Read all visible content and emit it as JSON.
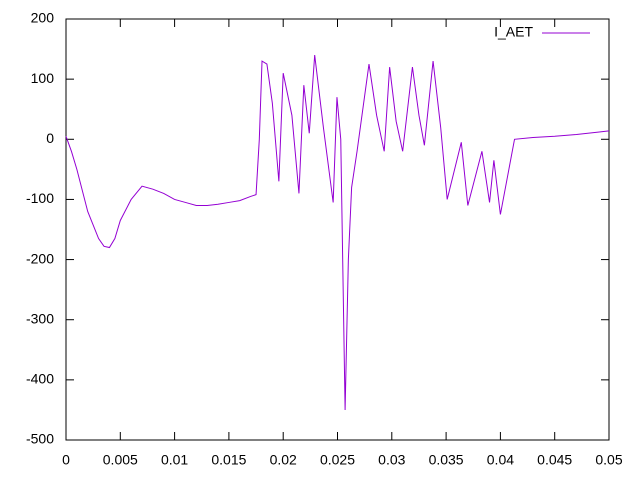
{
  "chart_data": {
    "type": "line",
    "x": [
      0,
      0.0005,
      0.001,
      0.002,
      0.003,
      0.0035,
      0.004,
      0.0045,
      0.005,
      0.006,
      0.007,
      0.008,
      0.009,
      0.01,
      0.011,
      0.012,
      0.013,
      0.014,
      0.015,
      0.016,
      0.017,
      0.0175,
      0.0178,
      0.01805,
      0.0185,
      0.019,
      0.0196,
      0.02,
      0.0208,
      0.02145,
      0.0219,
      0.0224,
      0.0229,
      0.0237,
      0.0246,
      0.02495,
      0.0253,
      0.0257,
      0.026,
      0.0263,
      0.0268,
      0.0279,
      0.0286,
      0.0293,
      0.0298,
      0.0304,
      0.031,
      0.0319,
      0.0325,
      0.033,
      0.0338,
      0.0345,
      0.0351,
      0.0364,
      0.037,
      0.0383,
      0.039,
      0.0394,
      0.04,
      0.0413,
      0.043,
      0.045,
      0.047,
      0.049,
      0.05
    ],
    "series": [
      {
        "name": "I_AET",
        "color": "#9400d3",
        "values": [
          5,
          -20,
          -50,
          -120,
          -165,
          -178,
          -180,
          -165,
          -135,
          -100,
          -78,
          -83,
          -90,
          -100,
          -105,
          -110,
          -110,
          -108,
          -105,
          -102,
          -95,
          -92,
          0,
          130,
          125,
          60,
          -70,
          110,
          40,
          -90,
          90,
          10,
          140,
          20,
          -105,
          70,
          0,
          -450,
          -200,
          -80,
          -20,
          125,
          40,
          -20,
          120,
          30,
          -20,
          120,
          40,
          -10,
          130,
          20,
          -100,
          -5,
          -110,
          -20,
          -105,
          -35,
          -125,
          0,
          3,
          5,
          8,
          12,
          14
        ]
      }
    ],
    "xlim": [
      0,
      0.05
    ],
    "ylim": [
      -500,
      200
    ],
    "xticks": [
      0,
      0.005,
      0.01,
      0.015,
      0.02,
      0.025,
      0.03,
      0.035,
      0.04,
      0.045,
      0.05
    ],
    "yticks": [
      -500,
      -400,
      -300,
      -200,
      -100,
      0,
      100,
      200
    ],
    "legend": "top-right"
  }
}
